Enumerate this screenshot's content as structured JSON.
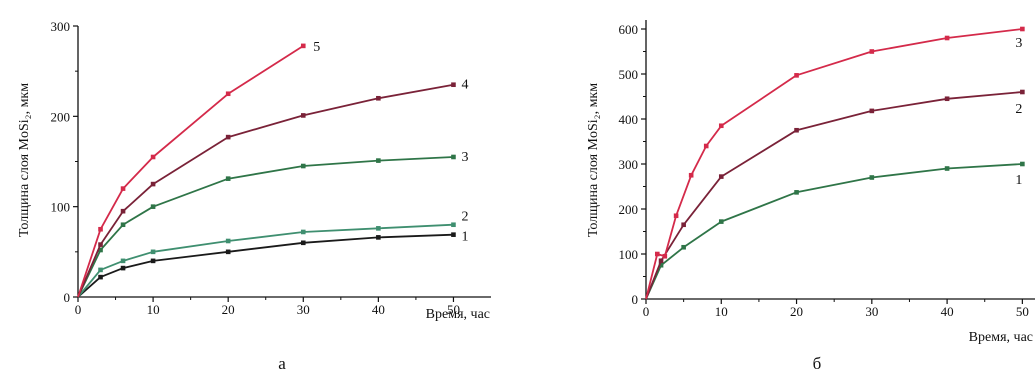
{
  "chart_data": [
    {
      "type": "line",
      "panel_label": "а",
      "xlabel": "Время, час",
      "ylabel": "Толщина слоя MoSi₂, мкм",
      "xlim": [
        0,
        55
      ],
      "ylim": [
        0,
        300
      ],
      "xticks": [
        "0",
        "10",
        "20",
        "30",
        "40",
        "50"
      ],
      "yticks": [
        "0",
        "100",
        "200",
        "300"
      ],
      "series": [
        {
          "name": "1",
          "color": "#1a1a1a",
          "x": [
            0,
            3,
            6,
            10,
            20,
            30,
            40,
            50
          ],
          "y": [
            0,
            22,
            32,
            40,
            50,
            60,
            66,
            69
          ]
        },
        {
          "name": "2",
          "color": "#3f8f70",
          "x": [
            0,
            3,
            6,
            10,
            20,
            30,
            40,
            50
          ],
          "y": [
            0,
            30,
            40,
            50,
            62,
            72,
            76,
            80
          ]
        },
        {
          "name": "3",
          "color": "#2f7548",
          "x": [
            0,
            3,
            6,
            10,
            20,
            30,
            40,
            50
          ],
          "y": [
            0,
            52,
            80,
            100,
            131,
            145,
            151,
            155
          ]
        },
        {
          "name": "4",
          "color": "#7a2238",
          "x": [
            0,
            3,
            6,
            10,
            20,
            30,
            40,
            50
          ],
          "y": [
            0,
            58,
            95,
            125,
            177,
            201,
            220,
            235
          ]
        },
        {
          "name": "5",
          "color": "#d42a4a",
          "x": [
            0,
            3,
            6,
            10,
            20,
            30
          ],
          "y": [
            0,
            75,
            120,
            155,
            225,
            278
          ]
        }
      ]
    },
    {
      "type": "line",
      "panel_label": "б",
      "xlabel": "Время, час",
      "ylabel": "Толщина слоя MoSi₂, мкм",
      "xlim": [
        0,
        55
      ],
      "ylim": [
        0,
        620
      ],
      "xticks": [
        "0",
        "10",
        "20",
        "30",
        "40",
        "50"
      ],
      "yticks": [
        "0",
        "100",
        "200",
        "300",
        "400",
        "500",
        "600"
      ],
      "series": [
        {
          "name": "1",
          "color": "#2f7548",
          "x": [
            0,
            2,
            5,
            10,
            20,
            30,
            40,
            50
          ],
          "y": [
            0,
            75,
            115,
            172,
            237,
            270,
            290,
            300
          ]
        },
        {
          "name": "2",
          "color": "#7a2238",
          "x": [
            0,
            2,
            5,
            10,
            20,
            30,
            40,
            50
          ],
          "y": [
            0,
            85,
            165,
            272,
            375,
            418,
            445,
            460
          ]
        },
        {
          "name": "3",
          "color": "#d42a4a",
          "x": [
            0,
            1.5,
            2.5,
            4,
            6,
            8,
            10,
            20,
            30,
            40,
            50
          ],
          "y": [
            0,
            100,
            95,
            185,
            275,
            340,
            385,
            497,
            550,
            580,
            600
          ]
        }
      ]
    }
  ]
}
